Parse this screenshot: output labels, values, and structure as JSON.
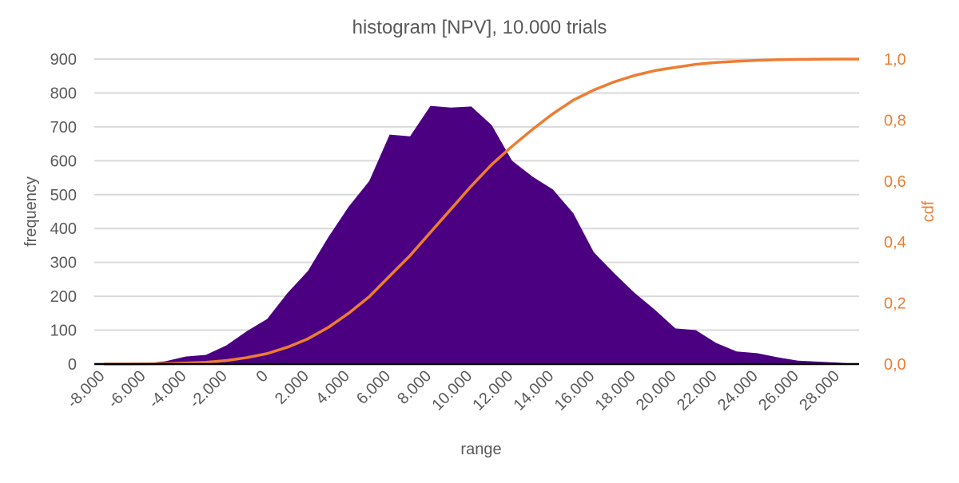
{
  "chart_data": {
    "type": "area",
    "title": "histogram [NPV], 10.000 trials",
    "xlabel": "range",
    "ylabel": "frequency",
    "y2label": "cdf",
    "ylim": [
      0,
      900
    ],
    "y2lim": [
      0,
      1
    ],
    "xlim": [
      -8000,
      29000
    ],
    "grid": true,
    "yticks": [
      "0",
      "100",
      "200",
      "300",
      "400",
      "500",
      "600",
      "700",
      "800",
      "900"
    ],
    "y2ticks": [
      "0,0",
      "0,2",
      "0,4",
      "0,6",
      "0,8",
      "1,0"
    ],
    "xticks": [
      {
        "value": -8000,
        "label": "-8.000"
      },
      {
        "value": -6000,
        "label": "-6.000"
      },
      {
        "value": -4000,
        "label": "-4.000"
      },
      {
        "value": -2000,
        "label": "-2.000"
      },
      {
        "value": 0,
        "label": "0"
      },
      {
        "value": 2000,
        "label": "2.000"
      },
      {
        "value": 4000,
        "label": "4.000"
      },
      {
        "value": 6000,
        "label": "6.000"
      },
      {
        "value": 8000,
        "label": "8.000"
      },
      {
        "value": 10000,
        "label": "10.000"
      },
      {
        "value": 12000,
        "label": "12.000"
      },
      {
        "value": 14000,
        "label": "14.000"
      },
      {
        "value": 16000,
        "label": "16.000"
      },
      {
        "value": 18000,
        "label": "18.000"
      },
      {
        "value": 20000,
        "label": "20.000"
      },
      {
        "value": 22000,
        "label": "22.000"
      },
      {
        "value": 24000,
        "label": "24.000"
      },
      {
        "value": 26000,
        "label": "26.000"
      },
      {
        "value": 28000,
        "label": "28.000"
      }
    ],
    "x": [
      -8000,
      -7000,
      -6000,
      -5000,
      -4000,
      -3000,
      -2000,
      -1000,
      0,
      1000,
      2000,
      3000,
      4000,
      5000,
      6000,
      7000,
      8000,
      9000,
      10000,
      11000,
      12000,
      13000,
      14000,
      15000,
      16000,
      17000,
      18000,
      19000,
      20000,
      21000,
      22000,
      23000,
      24000,
      25000,
      26000,
      27000,
      28000,
      29000
    ],
    "series": [
      {
        "name": "frequency",
        "color": "#4B0082",
        "axis": "left",
        "values": [
          0,
          0,
          2,
          8,
          22,
          27,
          55,
          97,
          133,
          210,
          275,
          375,
          465,
          540,
          677,
          672,
          762,
          757,
          760,
          705,
          600,
          553,
          515,
          445,
          330,
          268,
          210,
          160,
          105,
          100,
          62,
          37,
          32,
          20,
          10,
          7,
          4,
          0
        ]
      },
      {
        "name": "cdf",
        "color": "#ED7D31",
        "axis": "right",
        "values": [
          0,
          0,
          0.0002,
          0.001,
          0.0032,
          0.0059,
          0.0114,
          0.0211,
          0.0344,
          0.0554,
          0.0829,
          0.1204,
          0.1669,
          0.2209,
          0.2886,
          0.3558,
          0.432,
          0.5077,
          0.5837,
          0.6542,
          0.7142,
          0.7695,
          0.821,
          0.8655,
          0.8985,
          0.9253,
          0.9463,
          0.9623,
          0.9728,
          0.9828,
          0.989,
          0.9927,
          0.9959,
          0.9979,
          0.9989,
          0.9996,
          1.0,
          1.0
        ]
      }
    ]
  }
}
